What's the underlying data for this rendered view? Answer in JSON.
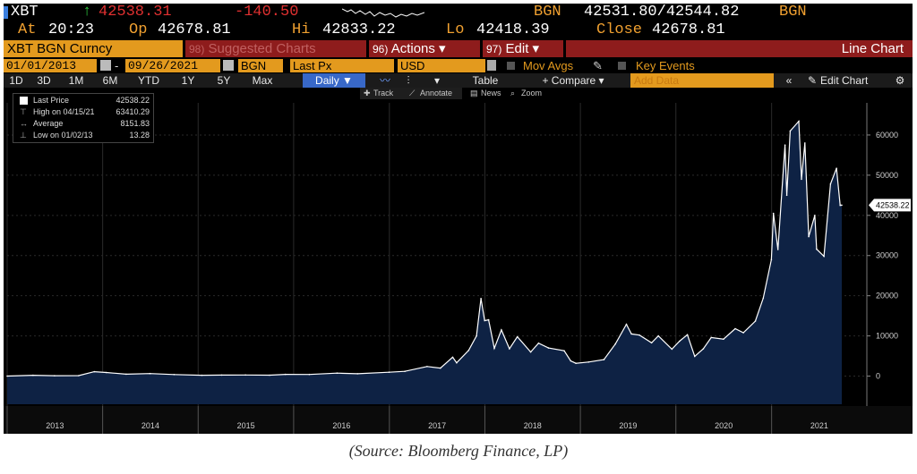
{
  "quote": {
    "ticker": "XBT",
    "up_arrow": "↑",
    "last": "42538.31",
    "change": "-140.50",
    "source": "BGN",
    "bid_ask": "42531.80/42544.82",
    "source2": "BGN",
    "at_label": "At",
    "time": "20:23",
    "open_label": "Op",
    "open": "42678.81",
    "high_label": "Hi",
    "high": "42833.22",
    "low_label": "Lo",
    "low": "42418.39",
    "close_label": "Close",
    "close": "42678.81"
  },
  "toolbar": {
    "security": "XBT BGN Curncy",
    "suggested_num": "98)",
    "suggested": "Suggested Charts",
    "actions_num": "96)",
    "actions": "Actions ▾",
    "edit_num": "97)",
    "edit": "Edit ▾",
    "chart_type": "Line Chart",
    "start_date": "01/01/2013",
    "dash": "-",
    "end_date": "09/26/2021",
    "pricing_source": "BGN",
    "field": "Last Px",
    "currency": "USD",
    "mov_avgs": "Mov Avgs",
    "key_events": "Key Events",
    "periods": [
      "1D",
      "3D",
      "1M",
      "6M",
      "YTD",
      "1Y",
      "5Y",
      "Max"
    ],
    "frequency": "Daily ▼",
    "table": "Table",
    "compare": "+ Compare ▾",
    "add_data": "Add Data",
    "edit_chart": "Edit Chart",
    "track": "Track",
    "annotate": "Annotate",
    "news": "News",
    "zoom": "Zoom"
  },
  "legend": [
    {
      "label": "Last Price",
      "value": "42538.22"
    },
    {
      "label": "High on 04/15/21",
      "value": "63410.29"
    },
    {
      "label": "Average",
      "value": "8151.83"
    },
    {
      "label": "Low on 01/02/13",
      "value": "13.28"
    }
  ],
  "colors": {
    "background": "#000000",
    "amber": "#f0a030",
    "area_fill": "#0e2244",
    "line": "#ffffff",
    "down": "#e03030",
    "up": "#2ecc40",
    "red_bar": "#8e1c1c"
  },
  "chart_data": {
    "type": "area",
    "series": [
      {
        "name": "Last Price",
        "points": [
          [
            "2013-01-01",
            13
          ],
          [
            "2013-04-10",
            200
          ],
          [
            "2013-07-01",
            90
          ],
          [
            "2013-10-01",
            130
          ],
          [
            "2013-11-30",
            1100
          ],
          [
            "2014-01-15",
            900
          ],
          [
            "2014-04-01",
            480
          ],
          [
            "2014-07-01",
            630
          ],
          [
            "2014-10-01",
            380
          ],
          [
            "2015-01-15",
            210
          ],
          [
            "2015-04-01",
            250
          ],
          [
            "2015-07-01",
            280
          ],
          [
            "2015-10-01",
            240
          ],
          [
            "2015-12-01",
            430
          ],
          [
            "2016-03-01",
            420
          ],
          [
            "2016-06-15",
            740
          ],
          [
            "2016-09-01",
            600
          ],
          [
            "2016-12-31",
            960
          ],
          [
            "2017-03-01",
            1200
          ],
          [
            "2017-05-25",
            2400
          ],
          [
            "2017-07-15",
            2000
          ],
          [
            "2017-08-31",
            4700
          ],
          [
            "2017-09-15",
            3300
          ],
          [
            "2017-10-31",
            6400
          ],
          [
            "2017-11-30",
            10000
          ],
          [
            "2017-12-17",
            19300
          ],
          [
            "2017-12-31",
            13800
          ],
          [
            "2018-01-15",
            14000
          ],
          [
            "2018-02-06",
            6900
          ],
          [
            "2018-03-05",
            11500
          ],
          [
            "2018-04-05",
            6800
          ],
          [
            "2018-05-05",
            9800
          ],
          [
            "2018-06-25",
            6000
          ],
          [
            "2018-07-25",
            8200
          ],
          [
            "2018-09-01",
            7000
          ],
          [
            "2018-10-31",
            6300
          ],
          [
            "2018-11-25",
            3800
          ],
          [
            "2018-12-15",
            3200
          ],
          [
            "2019-02-01",
            3500
          ],
          [
            "2019-04-01",
            4100
          ],
          [
            "2019-05-15",
            8000
          ],
          [
            "2019-06-26",
            12900
          ],
          [
            "2019-07-15",
            10500
          ],
          [
            "2019-08-15",
            10200
          ],
          [
            "2019-09-30",
            8300
          ],
          [
            "2019-10-26",
            10000
          ],
          [
            "2019-12-17",
            6700
          ],
          [
            "2020-01-15",
            8700
          ],
          [
            "2020-02-14",
            10300
          ],
          [
            "2020-03-13",
            4900
          ],
          [
            "2020-04-15",
            6800
          ],
          [
            "2020-05-15",
            9600
          ],
          [
            "2020-07-01",
            9200
          ],
          [
            "2020-08-15",
            11800
          ],
          [
            "2020-09-15",
            10800
          ],
          [
            "2020-10-31",
            13700
          ],
          [
            "2020-11-30",
            19400
          ],
          [
            "2020-12-31",
            29000
          ],
          [
            "2021-01-08",
            40500
          ],
          [
            "2021-01-25",
            31500
          ],
          [
            "2021-02-21",
            57500
          ],
          [
            "2021-02-28",
            45000
          ],
          [
            "2021-03-13",
            61000
          ],
          [
            "2021-04-15",
            63410
          ],
          [
            "2021-04-25",
            49000
          ],
          [
            "2021-05-08",
            58000
          ],
          [
            "2021-05-23",
            34700
          ],
          [
            "2021-06-15",
            40000
          ],
          [
            "2021-06-22",
            31600
          ],
          [
            "2021-07-20",
            29800
          ],
          [
            "2021-08-14",
            47800
          ],
          [
            "2021-09-06",
            51700
          ],
          [
            "2021-09-20",
            42500
          ],
          [
            "2021-09-26",
            42538
          ]
        ]
      }
    ],
    "x_tick_labels": [
      "2013",
      "2014",
      "2015",
      "2016",
      "2017",
      "2018",
      "2019",
      "2020",
      "2021"
    ],
    "y_tick_labels": [
      "0",
      "10000",
      "20000",
      "30000",
      "40000",
      "50000",
      "60000"
    ],
    "ylim": [
      -7000,
      68000
    ],
    "last_value_label": "42538.22",
    "grid": true,
    "legend_position": "top-left"
  },
  "caption": "(Source: Bloomberg Finance, LP)"
}
